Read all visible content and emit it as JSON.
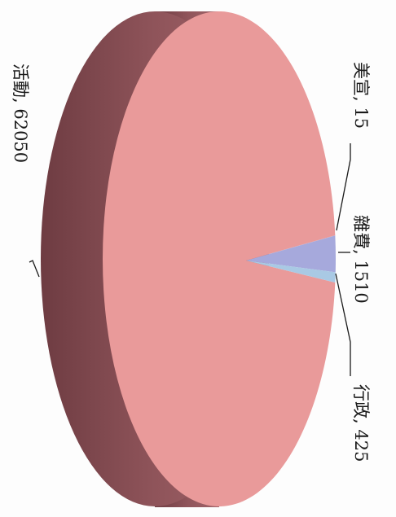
{
  "chart_data": {
    "type": "pie",
    "title": "",
    "labels": [
      "美宣",
      "雜費",
      "行政",
      "活動"
    ],
    "values": [
      15,
      1510,
      425,
      62050
    ],
    "display_labels": [
      "美宣, 15",
      "雜費, 1510",
      "行政, 425",
      "活動, 62050"
    ],
    "colors": {
      "美宣": "#c79ab0",
      "雜費": "#a6a9dc",
      "行政": "#a9c9e4",
      "活動": "#e99a9a"
    },
    "side_color": "#9a5c62",
    "grid": false,
    "legend": "none"
  }
}
